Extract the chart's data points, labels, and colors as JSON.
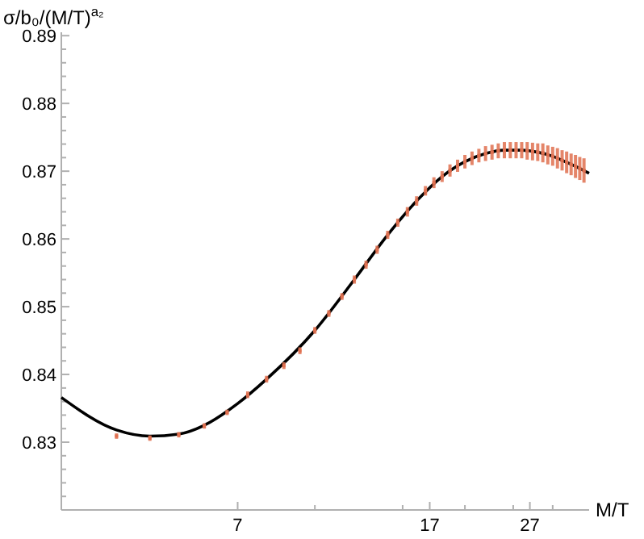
{
  "chart_data": {
    "type": "scatter",
    "xlabel": "M/T",
    "ylabel": "σ/b₀/(M/T)$^{a₂}$",
    "log": "x",
    "grid": false,
    "xlim": [
      3.1,
      35.5
    ],
    "xticks": [
      7,
      {
        "value": 10,
        "label": null
      },
      {
        "value": 15,
        "label": null
      },
      17,
      {
        "value": 20,
        "label": null
      },
      {
        "value": 25,
        "label": null
      },
      27,
      {
        "value": 30,
        "label": null
      }
    ],
    "ylim": [
      0.82,
      0.8905
    ],
    "yticks": [
      {
        "value": 0.822,
        "label": null
      },
      {
        "value": 0.824,
        "label": null
      },
      {
        "value": 0.826,
        "label": null
      },
      {
        "value": 0.828,
        "label": null
      },
      {
        "value": 0.83,
        "label": "0.83"
      },
      {
        "value": 0.832,
        "label": null
      },
      {
        "value": 0.834,
        "label": null
      },
      {
        "value": 0.836,
        "label": null
      },
      {
        "value": 0.838,
        "label": null
      },
      {
        "value": 0.84,
        "label": "0.84"
      },
      {
        "value": 0.842,
        "label": null
      },
      {
        "value": 0.844,
        "label": null
      },
      {
        "value": 0.846,
        "label": null
      },
      {
        "value": 0.848,
        "label": null
      },
      {
        "value": 0.85,
        "label": "0.85"
      },
      {
        "value": 0.852,
        "label": null
      },
      {
        "value": 0.854,
        "label": null
      },
      {
        "value": 0.856,
        "label": null
      },
      {
        "value": 0.858,
        "label": null
      },
      {
        "value": 0.86,
        "label": "0.86"
      },
      {
        "value": 0.862,
        "label": null
      },
      {
        "value": 0.864,
        "label": null
      },
      {
        "value": 0.866,
        "label": null
      },
      {
        "value": 0.868,
        "label": null
      },
      {
        "value": 0.87,
        "label": "0.87"
      },
      {
        "value": 0.872,
        "label": null
      },
      {
        "value": 0.874,
        "label": null
      },
      {
        "value": 0.876,
        "label": null
      },
      {
        "value": 0.878,
        "label": null
      },
      {
        "value": 0.88,
        "label": "0.88"
      },
      {
        "value": 0.882,
        "label": null
      },
      {
        "value": 0.884,
        "label": null
      },
      {
        "value": 0.886,
        "label": null
      },
      {
        "value": 0.888,
        "label": null
      },
      {
        "value": 0.89,
        "label": "0.89"
      }
    ],
    "series": [
      {
        "color": "#e07050",
        "x": [
          4,
          4.667,
          5.333,
          6,
          6.667,
          7.333,
          8,
          8.667,
          9.333,
          10,
          10.667,
          11.333,
          12,
          12.667,
          13.333,
          14,
          14.667,
          15.333,
          16,
          16.667,
          17.333,
          18,
          18.667,
          19.333,
          20,
          20.667,
          21.333,
          22,
          22.667,
          23.333,
          24,
          24.667,
          25.333,
          26,
          26.667,
          27.333,
          28,
          28.667,
          29.333,
          30,
          30.667,
          31.333,
          32,
          32.667,
          33.333,
          34,
          34.667
        ],
        "values": [
          0.8309,
          0.8306,
          0.8311,
          0.8324,
          0.8344,
          0.837,
          0.8393,
          0.8413,
          0.8435,
          0.8465,
          0.849,
          0.8515,
          0.854,
          0.8562,
          0.8584,
          0.8606,
          0.8624,
          0.864,
          0.8656,
          0.8671,
          0.8683,
          0.8692,
          0.8701,
          0.8708,
          0.8714,
          0.8719,
          0.8723,
          0.8726,
          0.8728,
          0.873,
          0.8731,
          0.8731,
          0.8731,
          0.8731,
          0.873,
          0.8729,
          0.8728,
          0.8727,
          0.8724,
          0.8722,
          0.8719,
          0.8716,
          0.8713,
          0.871,
          0.8707,
          0.8704,
          0.8701
        ],
        "errors": [
          0.0004,
          0.0004,
          0.0004,
          0.0004,
          0.0004,
          0.0005,
          0.0005,
          0.0005,
          0.0005,
          0.0005,
          0.0005,
          0.0005,
          0.0006,
          0.0006,
          0.0006,
          0.0006,
          0.0006,
          0.0007,
          0.0007,
          0.0007,
          0.0008,
          0.0008,
          0.0009,
          0.0009,
          0.001,
          0.001,
          0.001,
          0.0011,
          0.0011,
          0.0011,
          0.0012,
          0.0012,
          0.0012,
          0.0012,
          0.0013,
          0.0013,
          0.0013,
          0.0014,
          0.0014,
          0.0014,
          0.0015,
          0.0015,
          0.0016,
          0.0016,
          0.0017,
          0.0017,
          0.0018
        ]
      },
      {
        "type": "line",
        "color": "#000000",
        "x": [
          3.1,
          4,
          4.667,
          5.333,
          6,
          7,
          8,
          10,
          12,
          14,
          16,
          18,
          20,
          22,
          24,
          26,
          28,
          30,
          32,
          34,
          35.5
        ],
        "values": [
          0.8366,
          0.8318,
          0.8309,
          0.8312,
          0.8325,
          0.8357,
          0.8393,
          0.8465,
          0.854,
          0.8606,
          0.8656,
          0.8692,
          0.8714,
          0.8726,
          0.8731,
          0.8731,
          0.8728,
          0.8722,
          0.8713,
          0.8704,
          0.8697
        ]
      }
    ]
  }
}
